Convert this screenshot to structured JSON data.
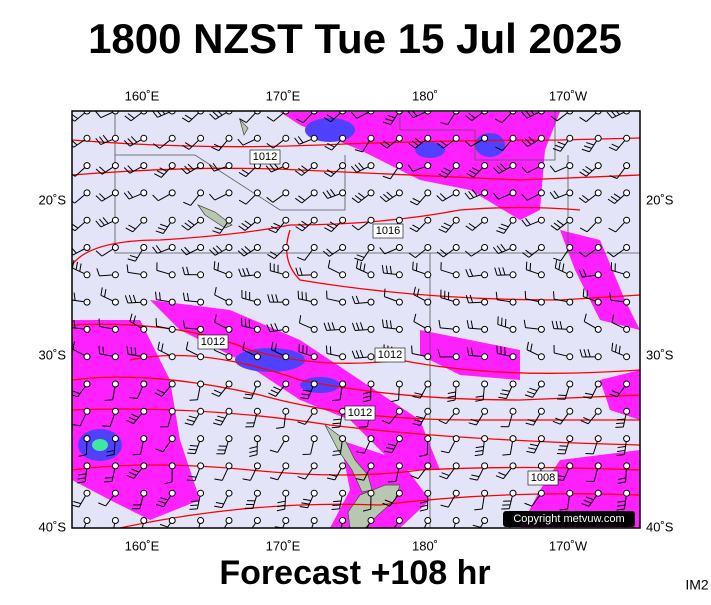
{
  "header": {
    "title": "1800 NZST Tue 15 Jul 2025"
  },
  "map": {
    "top_labels": [
      "160˚E",
      "170˚E",
      "180˚",
      "170˚W"
    ],
    "bottom_labels": [
      "160˚E",
      "170˚E",
      "180˚",
      "170˚W"
    ],
    "left_labels": [
      "20˚S",
      "30˚S",
      "40˚S"
    ],
    "right_labels": [
      "20˚S",
      "30˚S",
      "40˚S"
    ],
    "isobar_labels": [
      "1012",
      "1016",
      "1012",
      "1012",
      "1012",
      "1008"
    ],
    "copyright": "Copyright metvuw.com"
  },
  "footer": {
    "forecast": "Forecast +108 hr",
    "code": "IM2"
  }
}
